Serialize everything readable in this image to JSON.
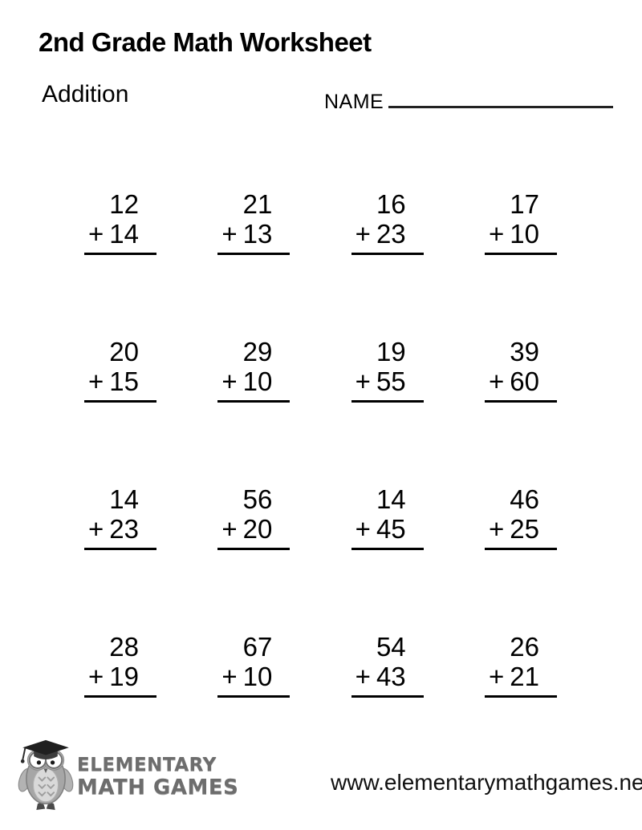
{
  "header": {
    "title": "2nd Grade Math Worksheet",
    "topic": "Addition",
    "name_label": "NAME"
  },
  "problems": {
    "operator": "+",
    "rows": [
      [
        {
          "top": "12",
          "bottom": "14"
        },
        {
          "top": "21",
          "bottom": "13"
        },
        {
          "top": "16",
          "bottom": "23"
        },
        {
          "top": "17",
          "bottom": "10"
        }
      ],
      [
        {
          "top": "20",
          "bottom": "15"
        },
        {
          "top": "29",
          "bottom": "10"
        },
        {
          "top": "19",
          "bottom": "55"
        },
        {
          "top": "39",
          "bottom": "60"
        }
      ],
      [
        {
          "top": "14",
          "bottom": "23"
        },
        {
          "top": "56",
          "bottom": "20"
        },
        {
          "top": "14",
          "bottom": "45"
        },
        {
          "top": "46",
          "bottom": "25"
        }
      ],
      [
        {
          "top": "28",
          "bottom": "19"
        },
        {
          "top": "67",
          "bottom": "10"
        },
        {
          "top": "54",
          "bottom": "43"
        },
        {
          "top": "26",
          "bottom": "21"
        }
      ]
    ]
  },
  "footer": {
    "logo_icon": "owl-graduate-icon",
    "logo_line1": "ELEMENTARY",
    "logo_line2": "MATH GAMES",
    "url": "www.elementarymathgames.net"
  },
  "colors": {
    "text": "#000000",
    "background": "#ffffff",
    "logo_gray": "#6d6d6d"
  }
}
